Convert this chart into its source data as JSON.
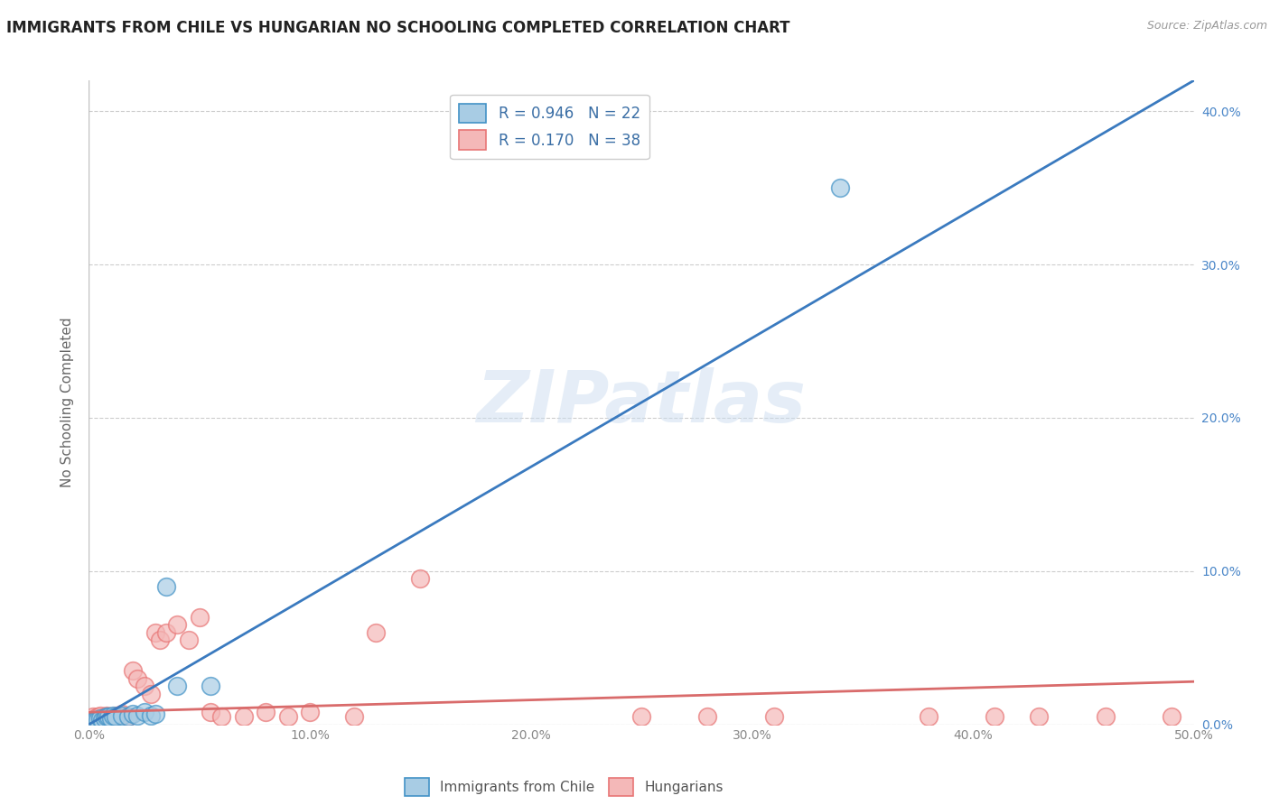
{
  "title": "IMMIGRANTS FROM CHILE VS HUNGARIAN NO SCHOOLING COMPLETED CORRELATION CHART",
  "source": "Source: ZipAtlas.com",
  "ylabel": "No Schooling Completed",
  "watermark": "ZIPatlas",
  "legend1_label": "R = 0.946   N = 22",
  "legend2_label": "R = 0.170   N = 38",
  "legend_bottom1": "Immigrants from Chile",
  "legend_bottom2": "Hungarians",
  "chile_color": "#a8cce4",
  "hungarian_color": "#f4b8b8",
  "chile_edge_color": "#4292c6",
  "hungarian_edge_color": "#e87575",
  "chile_line_color": "#3a7abf",
  "hungarian_line_color": "#d96b6b",
  "background_color": "#ffffff",
  "xlim": [
    0.0,
    0.5
  ],
  "ylim": [
    0.0,
    0.42
  ],
  "yticks": [
    0.0,
    0.1,
    0.2,
    0.3,
    0.4
  ],
  "ytick_labels": [
    "0.0%",
    "10.0%",
    "20.0%",
    "30.0%",
    "40.0%"
  ],
  "xticks": [
    0.0,
    0.1,
    0.2,
    0.3,
    0.4,
    0.5
  ],
  "xtick_labels": [
    "0.0%",
    "10.0%",
    "20.0%",
    "30.0%",
    "40.0%",
    "50.0%"
  ],
  "chile_line_x0": 0.0,
  "chile_line_y0": 0.0,
  "chile_line_x1": 0.5,
  "chile_line_y1": 0.42,
  "hung_line_x0": 0.0,
  "hung_line_y0": 0.008,
  "hung_line_x1": 0.5,
  "hung_line_y1": 0.028,
  "chile_scatter_x": [
    0.002,
    0.003,
    0.004,
    0.005,
    0.006,
    0.007,
    0.008,
    0.009,
    0.01,
    0.011,
    0.012,
    0.015,
    0.018,
    0.02,
    0.022,
    0.025,
    0.028,
    0.03,
    0.035,
    0.04,
    0.055,
    0.34
  ],
  "chile_scatter_y": [
    0.002,
    0.003,
    0.003,
    0.004,
    0.003,
    0.004,
    0.005,
    0.005,
    0.004,
    0.006,
    0.005,
    0.006,
    0.005,
    0.007,
    0.006,
    0.008,
    0.006,
    0.007,
    0.09,
    0.025,
    0.025,
    0.35
  ],
  "hungarian_scatter_x": [
    0.002,
    0.003,
    0.004,
    0.005,
    0.006,
    0.007,
    0.008,
    0.01,
    0.012,
    0.015,
    0.018,
    0.02,
    0.022,
    0.025,
    0.028,
    0.03,
    0.032,
    0.035,
    0.04,
    0.045,
    0.05,
    0.055,
    0.06,
    0.07,
    0.08,
    0.09,
    0.1,
    0.12,
    0.13,
    0.15,
    0.25,
    0.28,
    0.31,
    0.38,
    0.41,
    0.43,
    0.46,
    0.49
  ],
  "hungarian_scatter_y": [
    0.005,
    0.004,
    0.005,
    0.006,
    0.003,
    0.004,
    0.006,
    0.005,
    0.006,
    0.007,
    0.005,
    0.035,
    0.03,
    0.025,
    0.02,
    0.06,
    0.055,
    0.06,
    0.065,
    0.055,
    0.07,
    0.008,
    0.005,
    0.005,
    0.008,
    0.005,
    0.008,
    0.005,
    0.06,
    0.095,
    0.005,
    0.005,
    0.005,
    0.005,
    0.005,
    0.005,
    0.005,
    0.005
  ]
}
